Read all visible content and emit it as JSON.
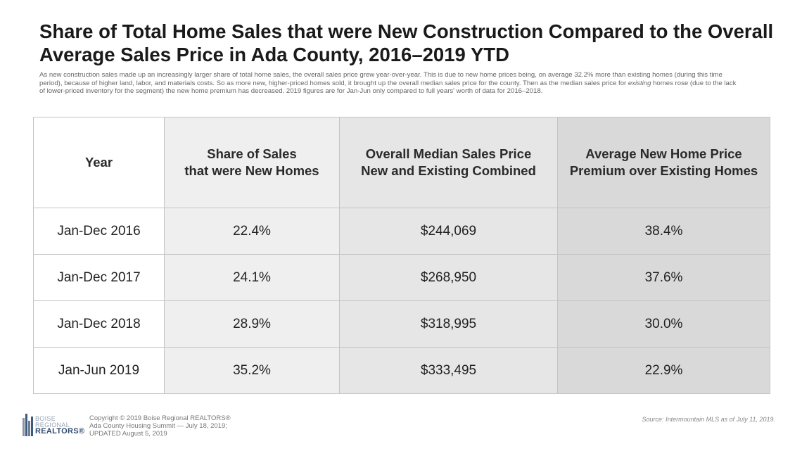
{
  "title": "Share of Total Home Sales that were New Construction Compared to the Overall Average Sales Price in Ada County, 2016–2019 YTD",
  "subtitle": {
    "part1": "As new construction sales made up an increasingly larger share of total home sales, the overall sales price grew year-over-year. This is due to new home prices being, on average 32.2% more than existing homes (during this time period), because of higher land, labor, and materials costs. So as more new, higher-priced homes sold, it brought up the overall median sales price for the county. Then as the median sales price for ",
    "emph": "existing",
    "part2": " homes rose (due to the lack of lower-priced inventory for the segment) the new home premium has decreased. 2019 figures are for Jan-Jun only compared to full years' worth of data for 2016–2018."
  },
  "table": {
    "headers": [
      [
        "Year"
      ],
      [
        "Share of Sales",
        "that were New Homes"
      ],
      [
        "Overall Median Sales Price",
        "New and Existing Combined"
      ],
      [
        "Average New Home Price",
        "Premium over Existing Homes"
      ]
    ],
    "rows": [
      [
        "Jan-Dec 2016",
        "22.4%",
        "$244,069",
        "38.4%"
      ],
      [
        "Jan-Dec 2017",
        "24.1%",
        "$268,950",
        "37.6%"
      ],
      [
        "Jan-Dec 2018",
        "28.9%",
        "$318,995",
        "30.0%"
      ],
      [
        "Jan-Jun 2019",
        "35.2%",
        "$333,495",
        "22.9%"
      ]
    ]
  },
  "logo": {
    "line1": "BOISE",
    "line2": "REGIONAL",
    "line3": "REALTORS®"
  },
  "copyright": [
    "Copyright © 2019 Boise Regional REALTORS®",
    "Ada County Housing Summit — July 18, 2019;",
    "UPDATED August 5, 2019"
  ],
  "source": "Source: Intermountain MLS as of July 11, 2019."
}
